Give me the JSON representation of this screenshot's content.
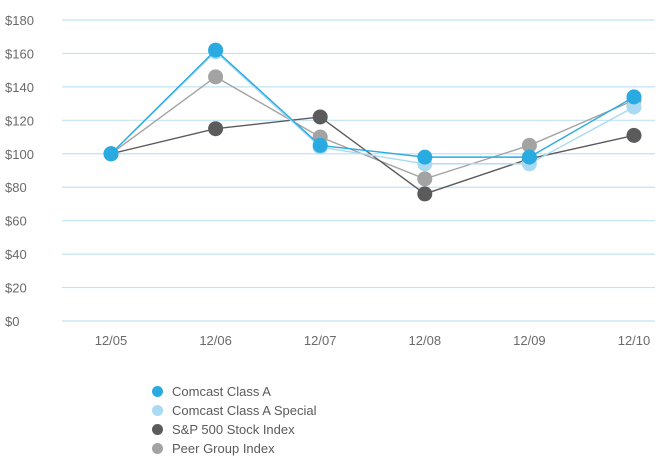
{
  "chart_data": {
    "type": "line",
    "categories": [
      "12/05",
      "12/06",
      "12/07",
      "12/08",
      "12/09",
      "12/10"
    ],
    "yticks": [
      "$0",
      "$20",
      "$40",
      "$60",
      "$80",
      "$100",
      "$120",
      "$140",
      "$160",
      "$180"
    ],
    "ylim": [
      0,
      180
    ],
    "grid": true,
    "legend_placement": "bottom-left",
    "series": [
      {
        "name": "Comcast Class A",
        "color": "#29abe2",
        "values": [
          100,
          162,
          105,
          98,
          98,
          134
        ]
      },
      {
        "name": "Comcast Class A Special",
        "color": "#a9daf2",
        "values": [
          100,
          161,
          104,
          94,
          94,
          128
        ]
      },
      {
        "name": "S&P 500 Stock Index",
        "color": "#5b5b5b",
        "values": [
          100,
          115,
          122,
          76,
          97,
          111
        ]
      },
      {
        "name": "Peer Group Index",
        "color": "#a3a3a3",
        "values": [
          100,
          146,
          110,
          85,
          105,
          132
        ]
      }
    ]
  },
  "colors": {
    "grid": "#bfe3f4"
  }
}
